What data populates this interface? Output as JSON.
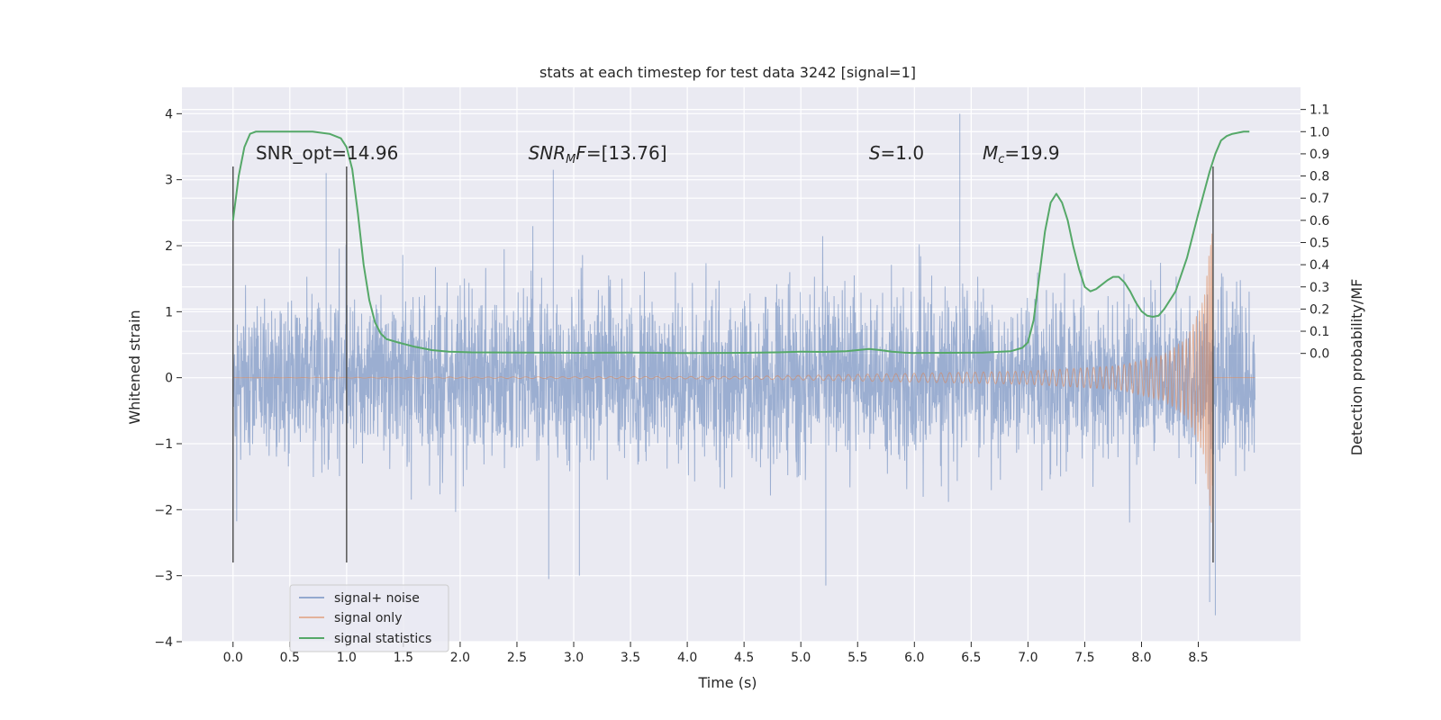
{
  "chart_data": {
    "type": "line",
    "title": "stats at each timestep for test data 3242 [signal=1]",
    "xlabel": "Time (s)",
    "ylabel": "Whitened strain",
    "ylabel_right": "Detection probability/MF",
    "xlim": [
      -0.45,
      9.4
    ],
    "ylim": [
      -4,
      4.4
    ],
    "ylim_right": [
      -1.3,
      1.2
    ],
    "x_ticks": [
      0.0,
      0.5,
      1.0,
      1.5,
      2.0,
      2.5,
      3.0,
      3.5,
      4.0,
      4.5,
      5.0,
      5.5,
      6.0,
      6.5,
      7.0,
      7.5,
      8.0,
      8.5
    ],
    "x_tick_labels": [
      "0.0",
      "0.5",
      "1.0",
      "1.5",
      "2.0",
      "2.5",
      "3.0",
      "3.5",
      "4.0",
      "4.5",
      "5.0",
      "5.5",
      "6.0",
      "6.5",
      "7.0",
      "7.5",
      "8.0",
      "8.5"
    ],
    "y_ticks": [
      -4,
      -3,
      -2,
      -1,
      0,
      1,
      2,
      3,
      4
    ],
    "y_tick_labels": [
      "−4",
      "−3",
      "−2",
      "−1",
      "0",
      "1",
      "2",
      "3",
      "4"
    ],
    "y_right_ticks": [
      0.0,
      0.1,
      0.2,
      0.3,
      0.4,
      0.5,
      0.6,
      0.7,
      0.8,
      0.9,
      1.0,
      1.1
    ],
    "y_right_tick_labels": [
      "0.0",
      "0.1",
      "0.2",
      "0.3",
      "0.4",
      "0.5",
      "0.6",
      "0.7",
      "0.8",
      "0.9",
      "1.0",
      "1.1"
    ],
    "grid": true,
    "legend_position": "lower-left",
    "annotations": [
      {
        "text": "SNR_opt=14.96",
        "x": 0.2,
        "y": 3.2
      },
      {
        "text": "SNR_MF=[13.76]",
        "x": 2.6,
        "y": 3.2
      },
      {
        "text": "S=1.0",
        "x": 5.6,
        "y": 3.2
      },
      {
        "text": "M_c=19.9",
        "x": 6.6,
        "y": 3.2
      }
    ],
    "vertical_markers_x": [
      0.0,
      1.0,
      8.63
    ],
    "vertical_markers_ymin": -2.8,
    "vertical_markers_ymax": 3.2,
    "series": [
      {
        "name": "signal+ noise",
        "color": "#4c72b0",
        "note": "whitened noisy strain, approx unit variance, 0 to 9 s",
        "amplitude_envelope": 1.3,
        "peak_samples": [
          {
            "x": 0.82,
            "y": 3.1
          },
          {
            "x": 2.82,
            "y": 3.15
          },
          {
            "x": 2.78,
            "y": -3.05
          },
          {
            "x": 3.05,
            "y": -3.0
          },
          {
            "x": 5.22,
            "y": -3.15
          },
          {
            "x": 6.4,
            "y": 4.0
          },
          {
            "x": 8.6,
            "y": -3.4
          },
          {
            "x": 8.65,
            "y": -3.6
          }
        ]
      },
      {
        "name": "signal only",
        "color": "#dd8452",
        "note": "chirp, growing amplitude, merger near 8.63 s",
        "amplitude_points": [
          {
            "x": 0.0,
            "a": 0.0
          },
          {
            "x": 4.5,
            "a": 0.02
          },
          {
            "x": 5.5,
            "a": 0.05
          },
          {
            "x": 7.0,
            "a": 0.1
          },
          {
            "x": 7.8,
            "a": 0.18
          },
          {
            "x": 8.2,
            "a": 0.35
          },
          {
            "x": 8.4,
            "a": 0.6
          },
          {
            "x": 8.55,
            "a": 1.2
          },
          {
            "x": 8.62,
            "a": 2.3
          },
          {
            "x": 8.64,
            "a": 0.0
          },
          {
            "x": 9.0,
            "a": 0.0
          }
        ]
      },
      {
        "name": "signal statistics",
        "color": "#55a868",
        "axis": "right",
        "x": [
          0.0,
          0.05,
          0.1,
          0.15,
          0.2,
          0.3,
          0.5,
          0.7,
          0.85,
          0.95,
          1.0,
          1.05,
          1.1,
          1.15,
          1.2,
          1.25,
          1.3,
          1.35,
          1.45,
          1.6,
          1.75,
          1.9,
          2.1,
          2.5,
          3.0,
          3.5,
          4.0,
          4.5,
          4.8,
          5.0,
          5.2,
          5.4,
          5.5,
          5.6,
          5.7,
          5.8,
          5.9,
          6.0,
          6.3,
          6.6,
          6.85,
          6.95,
          7.0,
          7.05,
          7.1,
          7.15,
          7.2,
          7.25,
          7.3,
          7.35,
          7.4,
          7.45,
          7.5,
          7.55,
          7.6,
          7.65,
          7.7,
          7.75,
          7.8,
          7.85,
          7.9,
          7.95,
          8.0,
          8.05,
          8.1,
          8.15,
          8.2,
          8.3,
          8.4,
          8.5,
          8.6,
          8.65,
          8.7,
          8.75,
          8.8,
          8.9,
          8.95
        ],
        "y": [
          0.6,
          0.8,
          0.93,
          0.99,
          1.0,
          1.0,
          1.0,
          1.0,
          0.99,
          0.97,
          0.93,
          0.83,
          0.63,
          0.4,
          0.24,
          0.14,
          0.09,
          0.065,
          0.05,
          0.03,
          0.015,
          0.008,
          0.005,
          0.004,
          0.003,
          0.004,
          0.002,
          0.003,
          0.005,
          0.008,
          0.007,
          0.01,
          0.015,
          0.02,
          0.015,
          0.008,
          0.004,
          0.002,
          0.003,
          0.004,
          0.01,
          0.025,
          0.05,
          0.15,
          0.35,
          0.55,
          0.68,
          0.72,
          0.68,
          0.6,
          0.48,
          0.38,
          0.3,
          0.28,
          0.29,
          0.31,
          0.33,
          0.345,
          0.345,
          0.32,
          0.28,
          0.23,
          0.19,
          0.17,
          0.165,
          0.17,
          0.2,
          0.28,
          0.43,
          0.63,
          0.82,
          0.9,
          0.96,
          0.98,
          0.99,
          1.0,
          1.0
        ]
      }
    ]
  }
}
